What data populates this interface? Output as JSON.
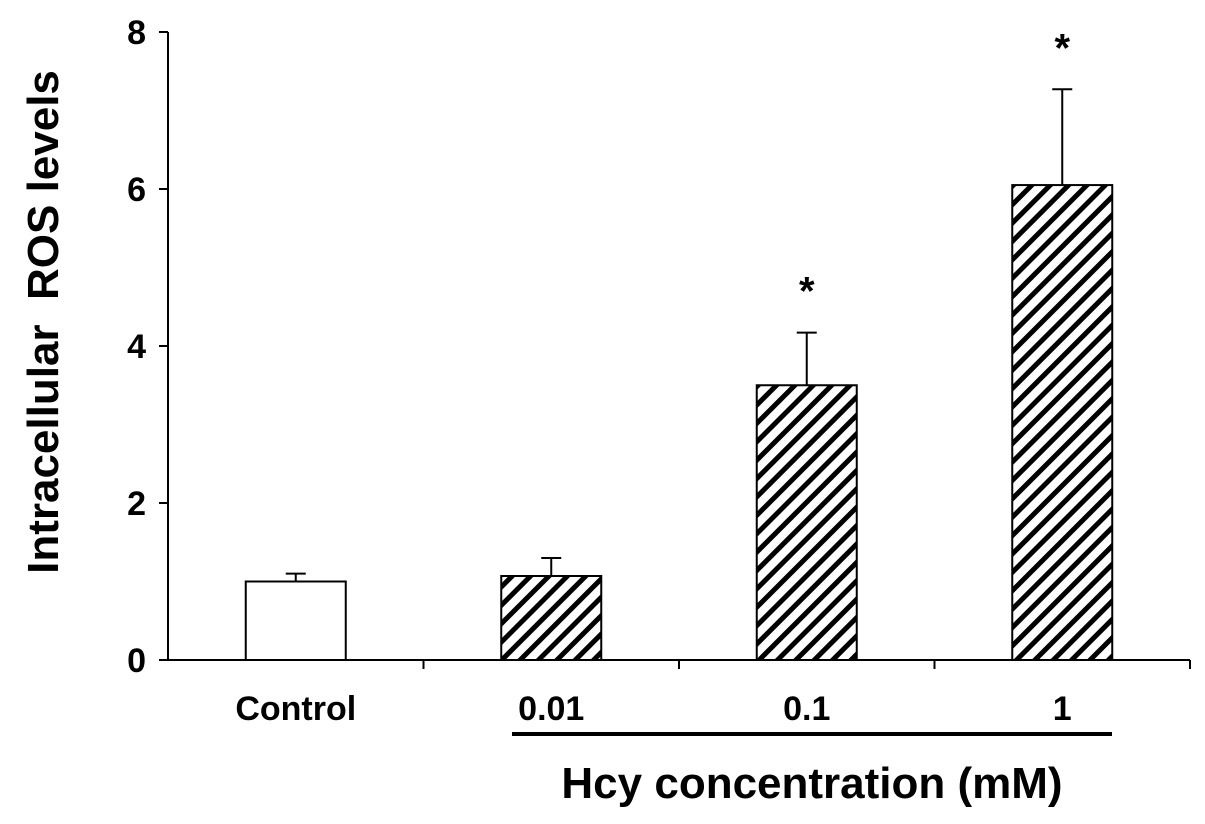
{
  "chart_data": {
    "type": "bar",
    "title": "",
    "ylabel": "Intracellular  ROS levels",
    "xlabel": "Hcy concentration (mM)",
    "ylim": [
      0,
      8
    ],
    "yticks": [
      0,
      2,
      4,
      6,
      8
    ],
    "categories": [
      "Control",
      "0.01",
      "0.1",
      "1"
    ],
    "values": [
      1.0,
      1.07,
      3.5,
      6.05
    ],
    "errors": [
      0.1,
      0.23,
      0.67,
      1.22
    ],
    "annotations": [
      "",
      "",
      "*",
      "*"
    ],
    "fills": [
      "solid-white",
      "diagonal-hatch",
      "diagonal-hatch",
      "diagonal-hatch"
    ],
    "colors": {
      "bar_stroke": "#000000",
      "hatch": "#000000",
      "background": "#ffffff"
    },
    "grid": false,
    "legend": "none"
  }
}
